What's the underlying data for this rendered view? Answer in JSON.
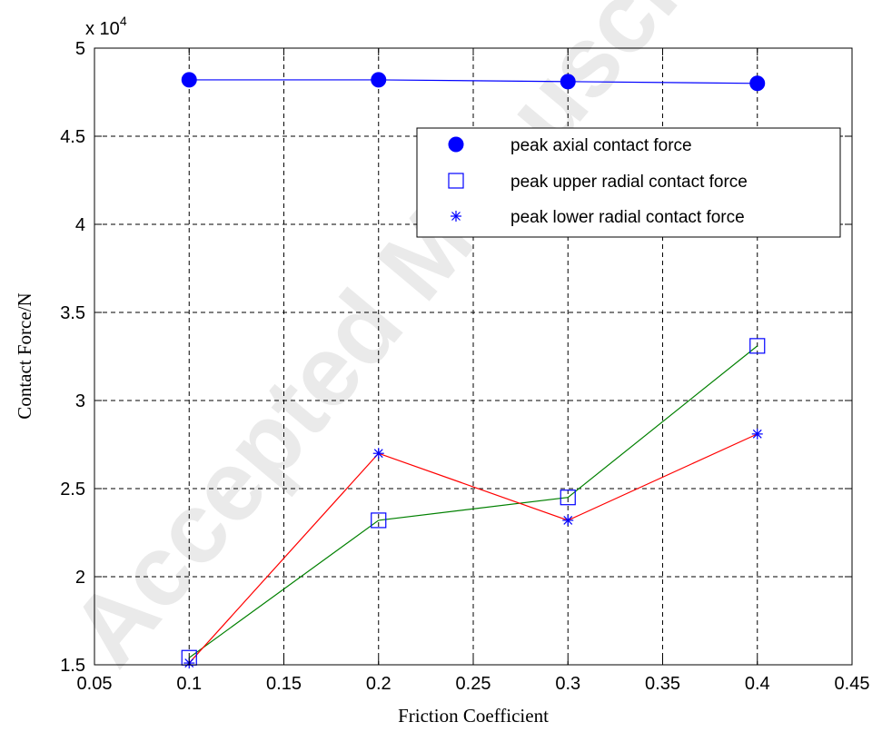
{
  "chart_data": {
    "type": "line",
    "x": [
      0.1,
      0.2,
      0.3,
      0.4
    ],
    "xlabel": "Friction Coefficient",
    "ylabel": "Contact Force/N",
    "xlim": [
      0.05,
      0.45
    ],
    "ylim": [
      1.5,
      5
    ],
    "x_ticks": [
      "0.05",
      "0.1",
      "0.15",
      "0.2",
      "0.25",
      "0.3",
      "0.35",
      "0.4",
      "0.45"
    ],
    "y_ticks": [
      "1.5",
      "2",
      "2.5",
      "3",
      "3.5",
      "4",
      "4.5",
      "5"
    ],
    "y_multiplier_base": "x 10",
    "y_multiplier_exp": "4",
    "grid": true,
    "legend_position": "top-right",
    "series": [
      {
        "name": "peak axial contact force",
        "values": [
          4.82,
          4.82,
          4.81,
          4.8
        ],
        "color": "#0000ff",
        "marker": "filled-circle"
      },
      {
        "name": "peak upper radial contact force",
        "values": [
          1.54,
          2.32,
          2.45,
          3.31
        ],
        "color": "#008000",
        "marker": "open-square"
      },
      {
        "name": "peak lower radial contact force",
        "values": [
          1.51,
          2.7,
          2.32,
          2.81
        ],
        "color": "#ff0000",
        "marker": "asterisk"
      }
    ]
  },
  "watermark": "Accepted Manuscript"
}
